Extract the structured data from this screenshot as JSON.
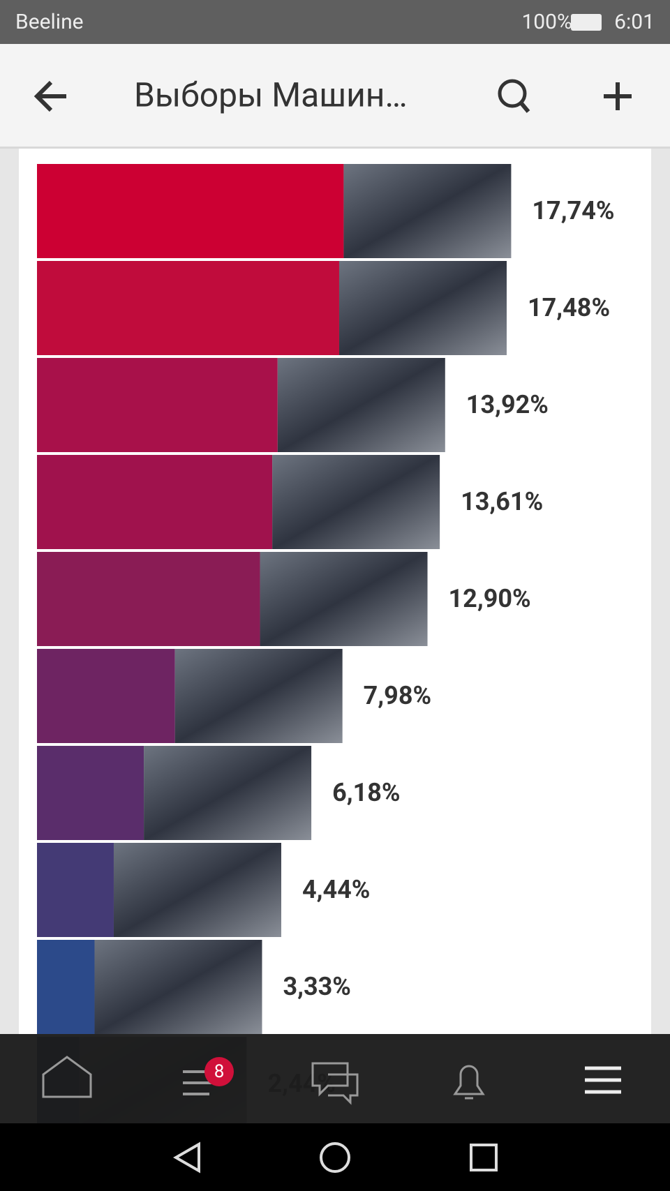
{
  "status_bar": {
    "carrier": "Beeline",
    "battery": "100%",
    "time": "6:01"
  },
  "header": {
    "title": "Выборы Машин…"
  },
  "chart_data": {
    "type": "bar",
    "values": [
      17.74,
      17.48,
      13.92,
      13.61,
      12.9,
      7.98,
      6.18,
      4.44,
      3.33,
      2.44
    ],
    "value_labels": [
      "17,74%",
      "17,48%",
      "13,92%",
      "13,61%",
      "12,90%",
      "7,98%",
      "6,18%",
      "4,44%",
      "3,33%",
      "2,44%"
    ],
    "colors": [
      "#cc0033",
      "#c00c3c",
      "#a8114a",
      "#a0124d",
      "#8a1c55",
      "#6e2462",
      "#5a2d6b",
      "#443a75",
      "#2c4a8a",
      "#1a3070"
    ]
  },
  "nav": {
    "badge": "8"
  }
}
